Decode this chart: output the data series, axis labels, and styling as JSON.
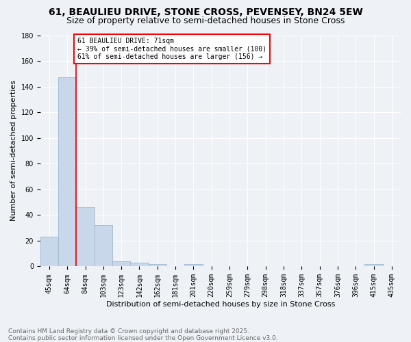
{
  "title1": "61, BEAULIEU DRIVE, STONE CROSS, PEVENSEY, BN24 5EW",
  "title2": "Size of property relative to semi-detached houses in Stone Cross",
  "xlabel": "Distribution of semi-detached houses by size in Stone Cross",
  "ylabel": "Number of semi-detached properties",
  "footer1": "Contains HM Land Registry data © Crown copyright and database right 2025.",
  "footer2": "Contains public sector information licensed under the Open Government Licence v3.0.",
  "bar_labels": [
    "45sqm",
    "64sqm",
    "84sqm",
    "103sqm",
    "123sqm",
    "142sqm",
    "162sqm",
    "181sqm",
    "201sqm",
    "220sqm",
    "259sqm",
    "279sqm",
    "298sqm",
    "318sqm",
    "337sqm",
    "357sqm",
    "376sqm",
    "396sqm",
    "415sqm",
    "435sqm"
  ],
  "bar_values": [
    23,
    147,
    46,
    32,
    4,
    3,
    2,
    0,
    2,
    0,
    0,
    0,
    0,
    0,
    0,
    0,
    0,
    0,
    2,
    0
  ],
  "bar_color": "#c8d8ea",
  "bar_edge_color": "#9ab8d0",
  "red_line_x": 1.5,
  "annotation_line1": "61 BEAULIEU DRIVE: 71sqm",
  "annotation_line2": "← 39% of semi-detached houses are smaller (100)",
  "annotation_line3": "61% of semi-detached houses are larger (156) →",
  "annotation_box_color": "white",
  "annotation_box_edge": "red",
  "ylim": [
    0,
    180
  ],
  "yticks": [
    0,
    20,
    40,
    60,
    80,
    100,
    120,
    140,
    160,
    180
  ],
  "background_color": "#eef2f7",
  "grid_color": "white",
  "title1_fontsize": 10,
  "title2_fontsize": 9,
  "ylabel_fontsize": 8,
  "xlabel_fontsize": 8,
  "tick_fontsize": 7,
  "annotation_fontsize": 7,
  "footer_fontsize": 6.5
}
